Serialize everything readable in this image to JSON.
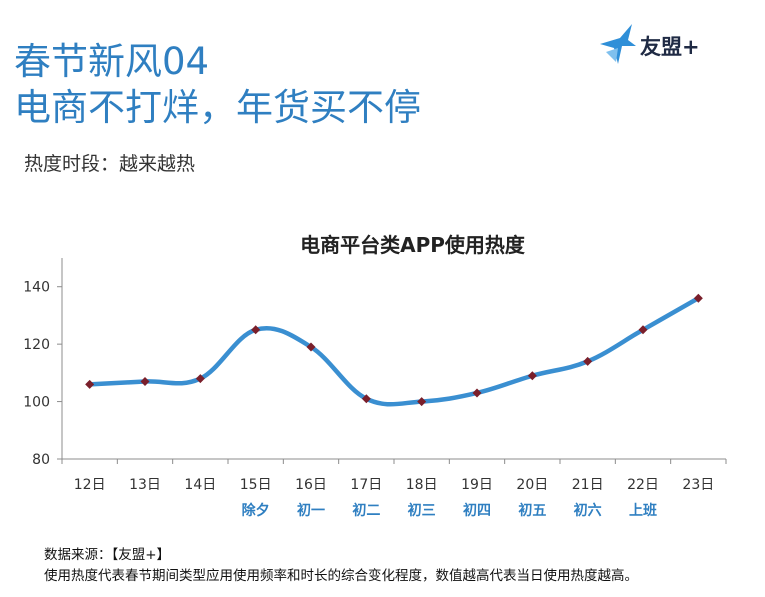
{
  "header": {
    "title_line1": "春节新风04",
    "title_line2": "电商不打烊，年货买不停",
    "subtitle": "热度时段：越来越热"
  },
  "logo": {
    "text": "友盟+",
    "icon": "bird-logo-icon",
    "color": "#2f8fd8"
  },
  "chart_data": {
    "type": "line",
    "title": "电商平台类APP使用热度",
    "categories": [
      "12日",
      "13日",
      "14日",
      "15日",
      "16日",
      "17日",
      "18日",
      "19日",
      "20日",
      "21日",
      "22日",
      "23日"
    ],
    "sublabels": [
      "",
      "",
      "",
      "除夕",
      "初一",
      "初二",
      "初三",
      "初四",
      "初五",
      "初六",
      "上班",
      ""
    ],
    "series": [
      {
        "name": "使用热度",
        "values": [
          106,
          107,
          108,
          125,
          119,
          101,
          100,
          103,
          109,
          114,
          125,
          136
        ]
      }
    ],
    "ylim": [
      80,
      150
    ],
    "yticks": [
      80,
      100,
      120,
      140
    ],
    "xlabel": "",
    "ylabel": "",
    "line_color": "#3a8fd1",
    "marker_color": "#7a1f2b",
    "sublabel_color": "#2f7fc1"
  },
  "footer": {
    "source": "数据来源：【友盟+】",
    "note": "使用热度代表春节期间类型应用使用频率和时长的综合变化程度，数值越高代表当日使用热度越高。"
  }
}
